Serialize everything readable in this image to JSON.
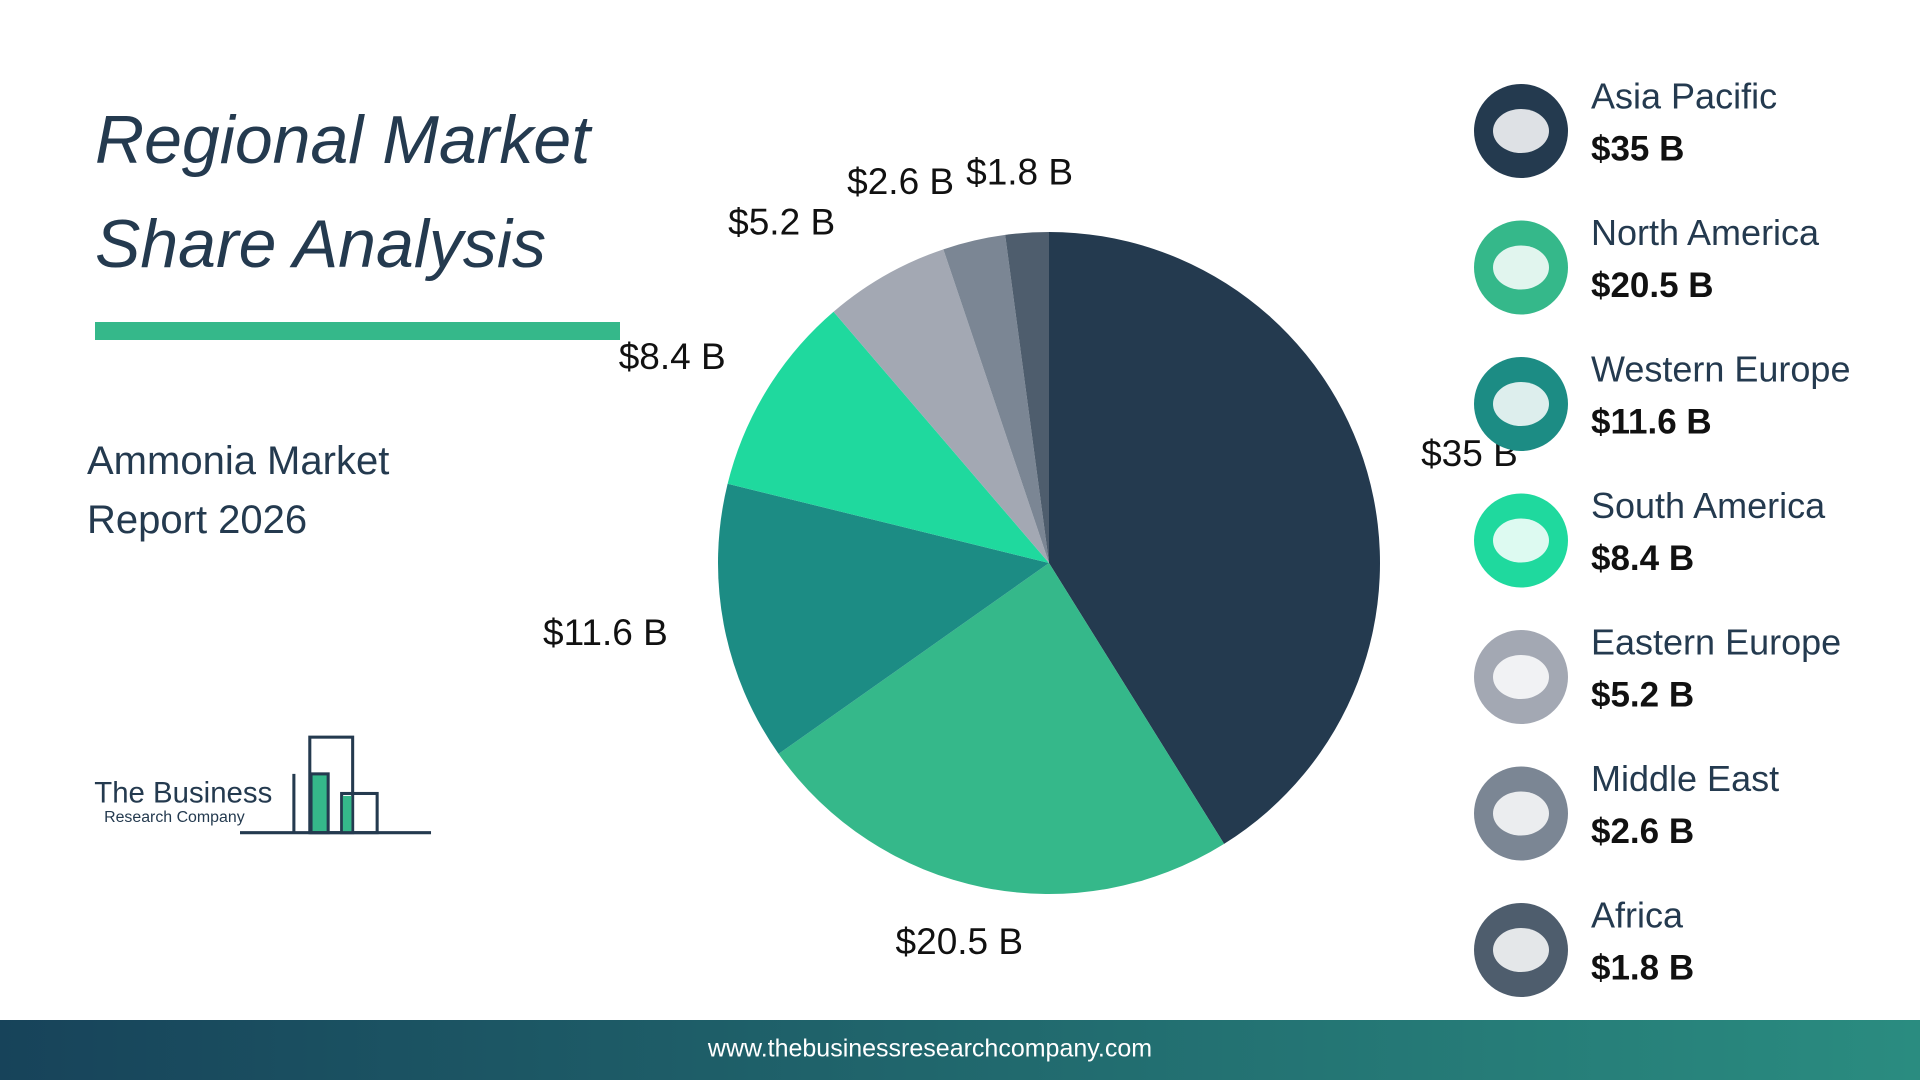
{
  "title": "Regional Market Share Analysis",
  "subtitle": "Ammonia Market Report 2026",
  "logo": {
    "line1": "The Business",
    "line2": "Research Company"
  },
  "footer": "www.thebusinessresearchcompany.com",
  "chart_data": {
    "type": "pie",
    "categories": [
      "Asia Pacific",
      "North America",
      "Western Europe",
      "South America",
      "Eastern Europe",
      "Middle East",
      "Africa"
    ],
    "values": [
      35,
      20.5,
      11.6,
      8.4,
      5.2,
      2.6,
      1.8
    ],
    "value_labels": [
      "$35 B",
      "$20.5 B",
      "$11.6 B",
      "$8.4 B",
      "$5.2 B",
      "$2.6 B",
      "$1.8 B"
    ],
    "colors": [
      "#243a4f",
      "#35b88a",
      "#1c8c84",
      "#1fd99e",
      "#a3a8b3",
      "#7b8694",
      "#4e5d6d"
    ]
  }
}
